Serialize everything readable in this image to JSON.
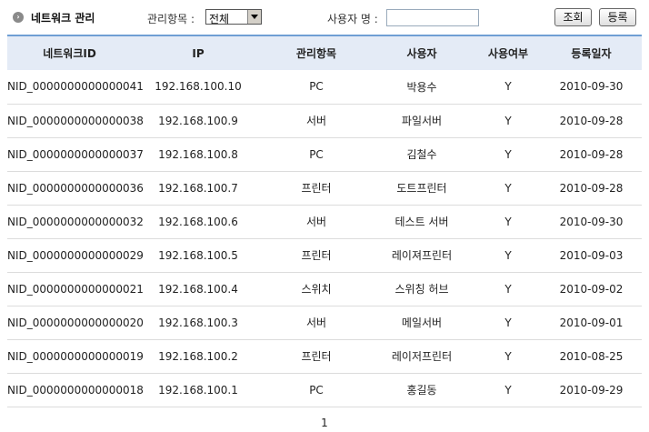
{
  "header": {
    "title": "네트워크 관리",
    "filter_label": "관리항목 :",
    "filter_selected": "전체",
    "user_label": "사용자 명 :",
    "user_value": "",
    "search_label": "조회",
    "register_label": "등록"
  },
  "table": {
    "columns": [
      "네트워크ID",
      "IP",
      "관리항목",
      "사용자",
      "사용여부",
      "등록일자"
    ],
    "rows": [
      [
        "NID_0000000000000041",
        "192.168.100.10",
        "PC",
        "박용수",
        "Y",
        "2010-09-30"
      ],
      [
        "NID_0000000000000038",
        "192.168.100.9",
        "서버",
        "파일서버",
        "Y",
        "2010-09-28"
      ],
      [
        "NID_0000000000000037",
        "192.168.100.8",
        "PC",
        "김철수",
        "Y",
        "2010-09-28"
      ],
      [
        "NID_0000000000000036",
        "192.168.100.7",
        "프린터",
        "도트프린터",
        "Y",
        "2010-09-28"
      ],
      [
        "NID_0000000000000032",
        "192.168.100.6",
        "서버",
        "테스트 서버",
        "Y",
        "2010-09-30"
      ],
      [
        "NID_0000000000000029",
        "192.168.100.5",
        "프린터",
        "레이져프린터",
        "Y",
        "2010-09-03"
      ],
      [
        "NID_0000000000000021",
        "192.168.100.4",
        "스위치",
        "스위칭 허브",
        "Y",
        "2010-09-02"
      ],
      [
        "NID_0000000000000020",
        "192.168.100.3",
        "서버",
        "메일서버",
        "Y",
        "2010-09-01"
      ],
      [
        "NID_0000000000000019",
        "192.168.100.2",
        "프린터",
        "레이저프린터",
        "Y",
        "2010-08-25"
      ],
      [
        "NID_0000000000000018",
        "192.168.100.1",
        "PC",
        "홍길동",
        "Y",
        "2010-09-29"
      ]
    ]
  },
  "pagination": {
    "current": "1"
  },
  "colors": {
    "header_bg": "#e4ebf6",
    "header_border": "#6f9fd4"
  },
  "icons": {
    "title_bullet": "circle-arrow-icon"
  }
}
